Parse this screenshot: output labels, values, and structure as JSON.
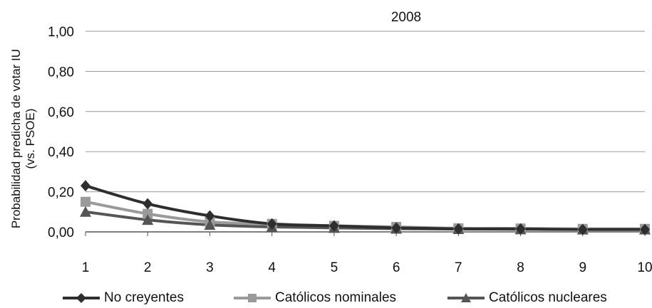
{
  "chart_data": {
    "type": "line",
    "title": "2008",
    "ylabel_lines": [
      "Probabilidad predicha de votar  IU",
      "(vs. PSOE)"
    ],
    "xlabel": "",
    "x": [
      1,
      2,
      3,
      4,
      5,
      6,
      7,
      8,
      9,
      10
    ],
    "x_tick_labels": [
      "1",
      "2",
      "3",
      "4",
      "5",
      "6",
      "7",
      "8",
      "9",
      "10"
    ],
    "ylim": [
      0,
      1
    ],
    "y_ticks": [
      0,
      0.2,
      0.4,
      0.6,
      0.8,
      1.0
    ],
    "y_tick_labels": [
      "0,00",
      "0,20",
      "0,40",
      "0,60",
      "0,80",
      "1,00"
    ],
    "grid": true,
    "legend_position": "bottom",
    "series": [
      {
        "name": "No creyentes",
        "marker": "diamond",
        "color": "#2e2e2e",
        "values": [
          0.23,
          0.14,
          0.08,
          0.04,
          0.03,
          0.02,
          0.015,
          0.015,
          0.012,
          0.012
        ]
      },
      {
        "name": "Católicos nominales",
        "marker": "square",
        "color": "#9a9a9a",
        "values": [
          0.15,
          0.09,
          0.05,
          0.04,
          0.03,
          0.025,
          0.018,
          0.017,
          0.015,
          0.015
        ]
      },
      {
        "name": "Católicos nucleares",
        "marker": "triangle",
        "color": "#555555",
        "values": [
          0.1,
          0.06,
          0.035,
          0.025,
          0.02,
          0.016,
          0.014,
          0.013,
          0.012,
          0.012
        ]
      }
    ]
  }
}
